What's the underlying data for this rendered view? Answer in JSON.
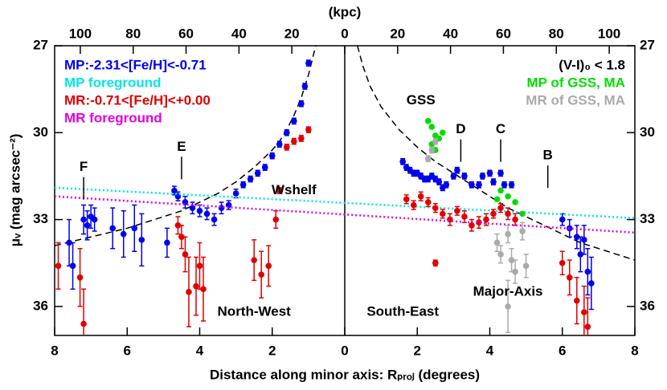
{
  "chart_data": {
    "type": "scatter",
    "xlabel": "Distance along minor axis: Rₚᵣₒⱼ (degrees)",
    "ylabel": "μᵥ (mag arcsec⁻²)",
    "x2label": "(kpc)",
    "xlim": [
      -8,
      8
    ],
    "xticks": [
      {
        "value": -8,
        "label": "8"
      },
      {
        "value": -6,
        "label": "6"
      },
      {
        "value": -4,
        "label": "4"
      },
      {
        "value": -2,
        "label": "2"
      },
      0,
      2,
      4,
      6,
      8
    ],
    "x2lim": [
      -109.7,
      109.7
    ],
    "x2ticks": [
      {
        "value": -100,
        "label": "100"
      },
      {
        "value": -80,
        "label": "80"
      },
      {
        "value": -60,
        "label": "60"
      },
      {
        "value": -40,
        "label": "40"
      },
      {
        "value": -20,
        "label": "20"
      },
      0,
      20,
      40,
      60,
      80,
      100
    ],
    "ylim": [
      37,
      27
    ],
    "yticks": [
      27,
      30,
      33,
      36
    ],
    "legend_note": "(V-I)₀ < 1.8",
    "series": [
      {
        "name": "MP:-2.31<[Fe/H]<-0.71",
        "color": "#0000ee",
        "legend": "left",
        "x": [
          -7.6,
          -7.5,
          -7.2,
          -7.1,
          -7.0,
          -6.9,
          -6.4,
          -6.1,
          -5.8,
          -5.6,
          -4.9,
          -4.7,
          -4.6,
          -4.4,
          -4.2,
          -4.0,
          -3.8,
          -3.6,
          -3.4,
          -3.2,
          -3.0,
          -2.8,
          -2.6,
          -2.4,
          -2.2,
          -2.0,
          -1.8,
          -1.6,
          -1.4,
          -1.2,
          -1.1,
          -1.0,
          1.6,
          1.7,
          1.8,
          1.9,
          2.0,
          2.1,
          2.2,
          2.3,
          2.4,
          2.5,
          2.6,
          2.7,
          2.8,
          3.0,
          3.1,
          3.3,
          3.5,
          3.7,
          3.8,
          4.0,
          4.1,
          4.3,
          4.4,
          4.6,
          6.0,
          6.2,
          6.4,
          6.5,
          6.6,
          6.7,
          6.8
        ],
        "values": [
          33.8,
          34.6,
          33.0,
          33.2,
          32.9,
          33.0,
          33.3,
          33.5,
          33.3,
          33.7,
          33.8,
          32.0,
          32.2,
          32.4,
          32.6,
          32.7,
          32.8,
          33.0,
          32.6,
          32.5,
          32.1,
          31.8,
          31.6,
          31.4,
          31.2,
          30.8,
          30.4,
          30.0,
          29.6,
          29.0,
          28.4,
          27.6,
          31.0,
          31.2,
          31.3,
          31.4,
          31.4,
          31.5,
          31.6,
          31.6,
          31.5,
          31.6,
          31.7,
          31.9,
          31.8,
          31.5,
          31.3,
          31.5,
          31.8,
          31.8,
          31.5,
          31.4,
          31.7,
          31.4,
          31.8,
          31.8,
          33.0,
          33.3,
          33.6,
          34.2,
          33.7,
          34.8,
          35.2
        ],
        "errors": [
          0.8,
          0.8,
          0.5,
          0.5,
          0.4,
          0.4,
          0.7,
          0.8,
          0.8,
          0.9,
          0.5,
          0.15,
          0.15,
          0.2,
          0.2,
          0.2,
          0.2,
          0.2,
          0.2,
          0.15,
          0.15,
          0.1,
          0.1,
          0.1,
          0.1,
          0.1,
          0.1,
          0.1,
          0.1,
          0.1,
          0.1,
          0.1,
          0.1,
          0.1,
          0.1,
          0.1,
          0.1,
          0.1,
          0.1,
          0.1,
          0.1,
          0.1,
          0.1,
          0.1,
          0.1,
          0.1,
          0.1,
          0.1,
          0.1,
          0.1,
          0.1,
          0.1,
          0.1,
          0.1,
          0.1,
          0.1,
          0.2,
          0.3,
          0.4,
          0.6,
          0.5,
          0.8,
          0.9
        ]
      },
      {
        "name": "MP foreground",
        "color": "#00e5e5",
        "legend": "left",
        "style": "dotted",
        "x": [
          -8,
          8
        ],
        "values": [
          31.9,
          32.95
        ]
      },
      {
        "name": "MR:-0.71<[Fe/H]<+0.00",
        "color": "#e00000",
        "legend": "left",
        "x": [
          -7.9,
          -7.3,
          -7.2,
          -4.6,
          -4.5,
          -4.4,
          -4.3,
          -4.1,
          -4.0,
          -3.9,
          -2.5,
          -2.3,
          -2.1,
          -1.9,
          -1.8,
          -1.6,
          -1.4,
          -1.2,
          -1.0,
          1.7,
          1.9,
          2.1,
          2.3,
          2.5,
          2.7,
          2.9,
          3.1,
          3.3,
          3.5,
          3.7,
          3.9,
          4.1,
          4.3,
          4.5,
          4.7,
          2.5,
          6.0,
          6.2,
          6.4,
          6.6,
          6.7
        ],
        "values": [
          34.6,
          35.0,
          36.6,
          33.2,
          33.6,
          34.2,
          35.5,
          35.3,
          34.6,
          35.4,
          34.4,
          34.9,
          34.6,
          33.0,
          32.0,
          30.5,
          30.3,
          30.2,
          29.9,
          32.3,
          32.5,
          32.2,
          32.4,
          32.6,
          32.8,
          33.0,
          32.7,
          32.9,
          33.2,
          33.1,
          33.0,
          32.8,
          32.6,
          32.8,
          33.0,
          34.5,
          34.5,
          35.0,
          35.8,
          36.2,
          36.7
        ],
        "errors": [
          0.8,
          1.0,
          1.2,
          0.3,
          0.4,
          0.6,
          1.2,
          1.0,
          0.8,
          1.1,
          0.7,
          0.8,
          0.7,
          0.3,
          0.1,
          0.1,
          0.1,
          0.1,
          0.1,
          0.15,
          0.15,
          0.15,
          0.15,
          0.15,
          0.15,
          0.2,
          0.15,
          0.2,
          0.2,
          0.2,
          0.2,
          0.15,
          0.15,
          0.2,
          0.2,
          0.1,
          0.4,
          0.6,
          0.8,
          0.9,
          1.0
        ]
      },
      {
        "name": "MR foreground",
        "color": "#e000e0",
        "legend": "left",
        "style": "dotted",
        "x": [
          -8,
          8
        ],
        "values": [
          32.2,
          33.45
        ]
      },
      {
        "name": "MP of GSS, MA",
        "color": "#00dd00",
        "legend": "right",
        "x": [
          2.3,
          2.4,
          2.5,
          2.6,
          2.7,
          2.5,
          2.4,
          4.2,
          4.3,
          4.5,
          4.7,
          4.9
        ],
        "values": [
          29.6,
          29.8,
          30.1,
          30.2,
          30.0,
          30.6,
          30.4,
          32.3,
          32.0,
          32.2,
          32.4,
          32.8
        ]
      },
      {
        "name": "MR of GSS, MA",
        "color": "#aaaaaa",
        "legend": "right",
        "x": [
          2.3,
          2.4,
          2.5,
          4.2,
          4.3,
          4.5,
          4.6,
          4.7,
          4.9,
          5.0,
          4.5
        ],
        "values": [
          30.9,
          30.6,
          30.3,
          33.8,
          34.2,
          33.5,
          34.4,
          34.8,
          33.4,
          34.6,
          36.0
        ],
        "errors": [
          0.1,
          0.1,
          0.1,
          0.3,
          0.3,
          0.3,
          0.4,
          0.4,
          0.3,
          0.4,
          0.9
        ]
      }
    ],
    "curves": [
      {
        "x": [
          -8,
          -7,
          -6,
          -5,
          -4.5,
          -4,
          -3.5,
          -3,
          -2.5,
          -2,
          -1.8,
          -1.6,
          -1.4,
          -1.2,
          -1.0,
          -0.9,
          -0.8
        ],
        "values": [
          33.9,
          33.6,
          33.3,
          32.9,
          32.7,
          32.4,
          32.1,
          31.7,
          31.2,
          30.6,
          30.3,
          29.9,
          29.4,
          28.8,
          28.0,
          27.5,
          27.0
        ]
      },
      {
        "x": [
          0.35,
          0.5,
          0.7,
          1.0,
          1.5,
          2,
          2.5,
          3,
          3.5,
          4,
          4.5,
          5,
          5.5,
          6,
          6.5,
          7,
          7.5,
          8
        ],
        "values": [
          27.0,
          27.7,
          28.4,
          29.1,
          29.9,
          30.5,
          31.0,
          31.4,
          31.8,
          32.2,
          32.6,
          32.9,
          33.2,
          33.5,
          33.8,
          34.0,
          34.2,
          34.4
        ]
      }
    ],
    "annotations": [
      {
        "text": "F",
        "x": -7.2,
        "y": 31.2
      },
      {
        "text": "E",
        "x": -4.5,
        "y": 30.5
      },
      {
        "text": "Wshelf",
        "x": -1.4,
        "y": 32.0
      },
      {
        "text": "GSS",
        "x": 2.1,
        "y": 28.9
      },
      {
        "text": "D",
        "x": 3.2,
        "y": 29.9
      },
      {
        "text": "C",
        "x": 4.3,
        "y": 29.9
      },
      {
        "text": "B",
        "x": 5.6,
        "y": 30.8
      },
      {
        "text": "Major-Axis",
        "x": 4.5,
        "y": 35.5
      },
      {
        "text": "North-West",
        "x": -2.5,
        "y": 36.2
      },
      {
        "text": "South-East",
        "x": 1.6,
        "y": 36.2
      }
    ]
  }
}
